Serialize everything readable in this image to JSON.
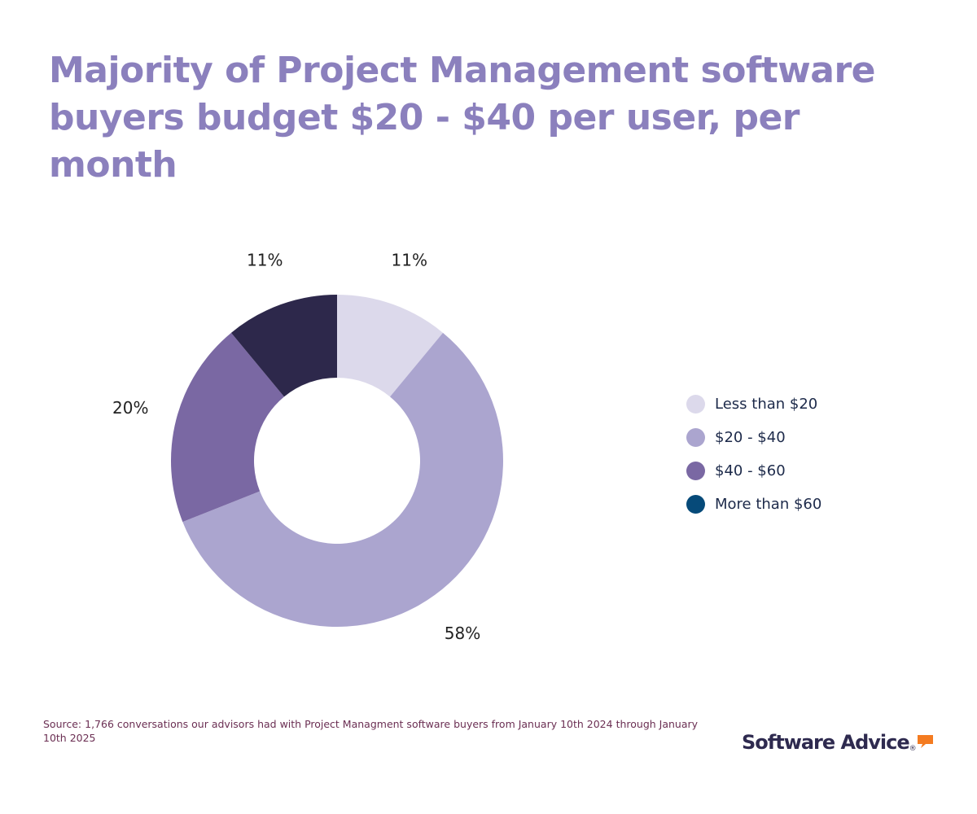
{
  "title": "Majority of Project Management software buyers budget $20 - $40 per user, per month",
  "chart_data": {
    "type": "pie",
    "style": "donut",
    "title": "Majority of Project Management software buyers budget $20 - $40 per user, per month",
    "categories": [
      "Less than $20",
      "$20 - $40",
      "$40 - $60",
      "More than $60"
    ],
    "values": [
      11,
      58,
      20,
      11
    ],
    "data_labels": [
      "11%",
      "58%",
      "20%",
      "11%"
    ],
    "slice_colors": [
      "#dcd9eb",
      "#aba5cf",
      "#7a68a3",
      "#2d284b"
    ],
    "legend_colors": [
      "#dcd9eb",
      "#aba5cf",
      "#7a68a3",
      "#064a79"
    ],
    "legend_position": "right",
    "start_angle_deg": 0,
    "direction": "clockwise"
  },
  "source": "Source: 1,766 conversations our advisors had with Project Managment software buyers from January 10th 2024 through January 10th 2025",
  "logo": {
    "text": "Software Advice",
    "registered": "®",
    "accent_color": "#f47b20",
    "icon": "speech-bubble-icon"
  }
}
